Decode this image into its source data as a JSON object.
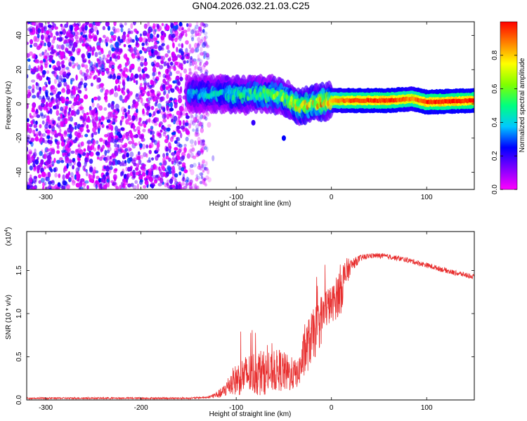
{
  "title": "GN04.2026.032.21.03.C25",
  "chart_data": [
    {
      "type": "heatmap",
      "xlabel": "Height of straight line (km)",
      "ylabel": "Frequency (Hz)",
      "xlim": [
        -320,
        150
      ],
      "ylim": [
        -50,
        48
      ],
      "xticks": [
        -300,
        -200,
        -100,
        0,
        100
      ],
      "yticks": [
        -40,
        -20,
        0,
        20,
        40
      ],
      "colorbar": {
        "label": "Normalized spectral amplitude",
        "range": [
          0.0,
          1.0
        ],
        "ticks": [
          "0.0",
          "0.2",
          "0.4",
          "0.6",
          "0.8"
        ],
        "colormap": [
          "#ff00ff",
          "#8000ff",
          "#0000ff",
          "#00c8ff",
          "#00ff80",
          "#80ff00",
          "#ffff00",
          "#ff8000",
          "#ff0000"
        ]
      },
      "features": {
        "noise_region_x": [
          -320,
          -130
        ],
        "noise_amplitude_range": [
          0.02,
          0.3
        ],
        "signal_track": [
          {
            "x": -150,
            "y": 6,
            "amp": 0.35
          },
          {
            "x": -120,
            "y": 6,
            "amp": 0.45
          },
          {
            "x": -90,
            "y": 5,
            "amp": 0.5
          },
          {
            "x": -65,
            "y": 6,
            "amp": 0.6
          },
          {
            "x": -45,
            "y": 3,
            "amp": 0.65
          },
          {
            "x": -35,
            "y": -2,
            "amp": 0.75
          },
          {
            "x": -20,
            "y": 0,
            "amp": 0.8
          },
          {
            "x": 0,
            "y": 2,
            "amp": 0.85
          },
          {
            "x": 20,
            "y": 2,
            "amp": 0.95
          },
          {
            "x": 60,
            "y": 2,
            "amp": 1.0
          },
          {
            "x": 85,
            "y": 3,
            "amp": 0.9
          },
          {
            "x": 100,
            "y": 1,
            "amp": 1.0
          },
          {
            "x": 150,
            "y": 2,
            "amp": 1.0
          }
        ],
        "isolated_blobs": [
          {
            "x": -82,
            "y": -11,
            "amp": 0.2
          },
          {
            "x": -50,
            "y": -20,
            "amp": 0.25
          },
          {
            "x": -110,
            "y": 15,
            "amp": 0.15
          }
        ]
      }
    },
    {
      "type": "line",
      "xlabel": "Height of straight line (km)",
      "ylabel": "SNR (10 * v/v)",
      "y_multiplier": "(x10",
      "y_multiplier_exp": "4",
      "xlim": [
        -320,
        150
      ],
      "ylim": [
        0,
        1.95
      ],
      "xticks": [
        -300,
        -200,
        -100,
        0,
        100
      ],
      "yticks": [
        "0.0",
        "0.5",
        "1.0",
        "1.5"
      ],
      "color": "#e83030",
      "series": [
        {
          "x": [
            -320,
            -150,
            -130,
            -115,
            -105,
            -95,
            -85,
            -75,
            -65,
            -55,
            -45,
            -35,
            -28,
            -22,
            -15,
            -10,
            -5,
            0,
            5,
            10,
            15,
            20,
            30,
            40,
            50,
            60,
            70,
            80,
            90,
            100,
            110,
            120,
            130,
            140,
            150
          ],
          "values": [
            0.02,
            0.02,
            0.03,
            0.08,
            0.2,
            0.27,
            0.3,
            0.32,
            0.3,
            0.35,
            0.3,
            0.3,
            0.55,
            0.7,
            0.82,
            0.95,
            1.08,
            1.1,
            1.18,
            1.3,
            1.45,
            1.55,
            1.64,
            1.67,
            1.67,
            1.66,
            1.64,
            1.62,
            1.59,
            1.56,
            1.53,
            1.5,
            1.47,
            1.45,
            1.42
          ],
          "noise": [
            0.01,
            0.01,
            0.01,
            0.06,
            0.15,
            0.22,
            0.25,
            0.28,
            0.22,
            0.25,
            0.22,
            0.15,
            0.3,
            0.3,
            0.3,
            0.3,
            0.25,
            0.2,
            0.25,
            0.3,
            0.2,
            0.08,
            0.04,
            0.03,
            0.03,
            0.03,
            0.03,
            0.03,
            0.03,
            0.03,
            0.03,
            0.03,
            0.03,
            0.03,
            0.03
          ]
        }
      ]
    }
  ]
}
